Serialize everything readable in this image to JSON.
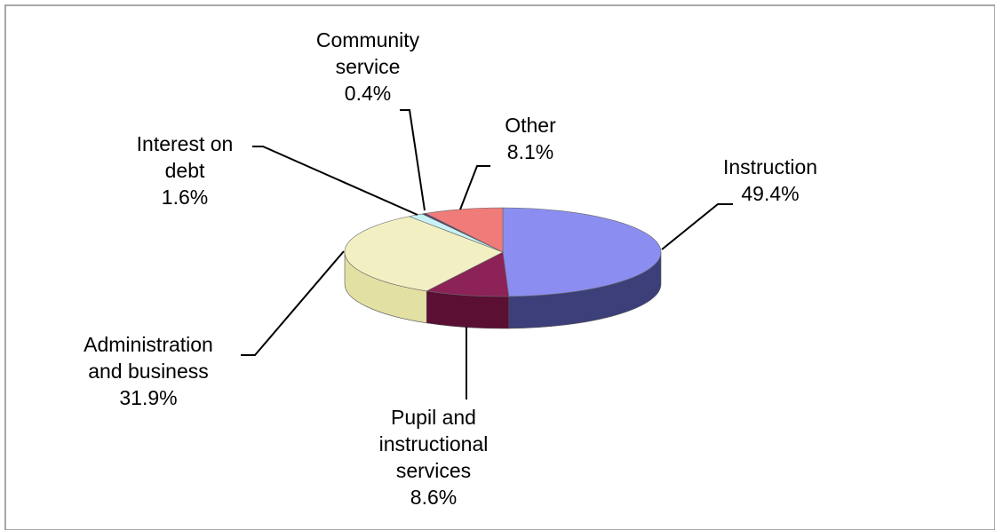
{
  "chart_data": {
    "type": "pie",
    "title": "",
    "slices": [
      {
        "label_lines": [
          "Instruction"
        ],
        "percent_label": "49.4%",
        "value": 49.4,
        "color": "#8b8ef0",
        "side_color": "#3d3f7a"
      },
      {
        "label_lines": [
          "Pupil and",
          "instructional",
          "services"
        ],
        "percent_label": "8.6%",
        "value": 8.6,
        "color": "#8c2257",
        "side_color": "#5a0f33"
      },
      {
        "label_lines": [
          "Administration",
          "and business"
        ],
        "percent_label": "31.9%",
        "value": 31.9,
        "color": "#f2f0c2",
        "side_color": "#e3e0a4"
      },
      {
        "label_lines": [
          "Interest on",
          "debt"
        ],
        "percent_label": "1.6%",
        "value": 1.6,
        "color": "#c8f2f6",
        "side_color": "#9fd9df"
      },
      {
        "label_lines": [
          "Community",
          "service"
        ],
        "percent_label": "0.4%",
        "value": 0.4,
        "color": "#5a3a6a",
        "side_color": "#3a2446"
      },
      {
        "label_lines": [
          "Other"
        ],
        "percent_label": "8.1%",
        "value": 8.1,
        "color": "#f07c7a",
        "side_color": "#b85553"
      }
    ],
    "style": "3d-pie",
    "legend": "none"
  }
}
